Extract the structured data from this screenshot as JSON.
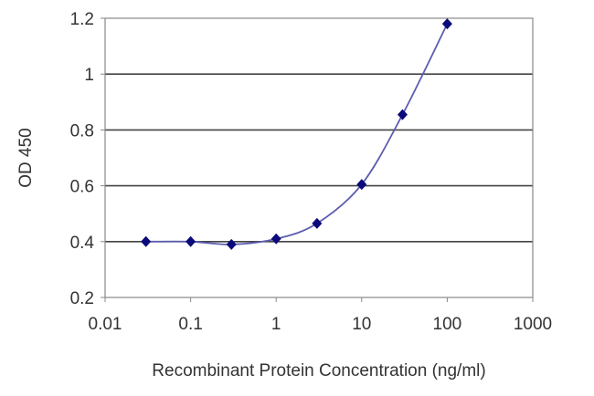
{
  "chart_data": {
    "type": "line",
    "title": "",
    "xlabel": "Recombinant Protein Concentration (ng/ml)",
    "ylabel": "OD 450",
    "xscale": "log",
    "xlim": [
      0.01,
      1000
    ],
    "ylim": [
      0.2,
      1.2
    ],
    "xticks": [
      "0.01",
      "0.1",
      "1",
      "10",
      "100",
      "1000"
    ],
    "yticks": [
      "0.2",
      "0.4",
      "0.6",
      "0.8",
      "1",
      "1.2"
    ],
    "grid": "horizontal",
    "series": [
      {
        "name": "OD 450",
        "x": [
          0.03,
          0.1,
          0.3,
          1,
          3,
          10,
          30,
          100
        ],
        "y": [
          0.4,
          0.4,
          0.39,
          0.41,
          0.465,
          0.605,
          0.855,
          1.18
        ],
        "marker_color": "#0a0a7a",
        "line_color": "#5c5cb0"
      }
    ]
  }
}
